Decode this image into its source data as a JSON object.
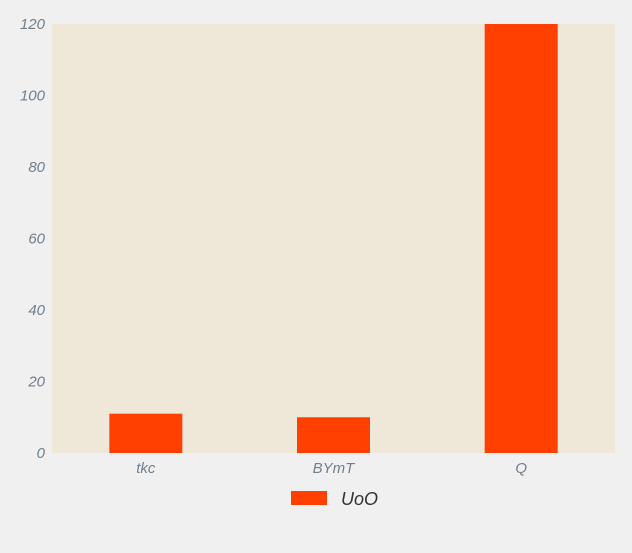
{
  "chart_data": {
    "type": "bar",
    "categories": [
      "tkc",
      "BYmT",
      "Q"
    ],
    "series": [
      {
        "name": "UoO",
        "values": [
          11,
          10,
          120
        ]
      }
    ],
    "ylim": [
      0,
      120
    ],
    "yticks": [
      0,
      20,
      40,
      60,
      80,
      100,
      120
    ],
    "grid": false,
    "legend_position": "bottom-center",
    "colors": {
      "bar": "#ff4000",
      "plot_background": "#efe8d8",
      "page_background": "#f0f0f0",
      "tick_text": "#6f7f8c"
    }
  }
}
